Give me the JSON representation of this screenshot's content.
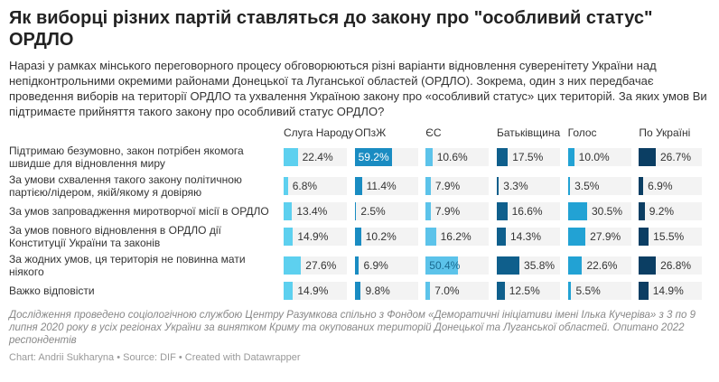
{
  "title": "Як виборці різних партій ставляться до закону про \"особливий статус\" ОРДЛО",
  "description": "Наразі у рамках мінського переговорного процесу обговорюються різні варіанти відновлення суверенітету України над непідконтрольними окремими районами Донецької та Луганської областей (ОРДЛО). Зокрема, один з них передбачає проведення виборів на території ОРДЛО та ухвалення Україною закону про «особливий статус» цих територій. За яких умов Ви підтримаєте прийняття такого закону про особливий статус ОРДЛО?",
  "notes": "Дослідження проведено соціологічною службою Центру Разумкова спільно з Фондом «Деморатичні ініціативи імені Ілька Кучеріва» з 3 по 9 липня 2020 року в усіх регіонах України за винятком Криму та окупованих територій Донецької та Луганської областей. Опитано 2022 респондентів",
  "source": "Chart: Andrii Sukharyna • Source: DIF • Created with Datawrapper",
  "chart_data": {
    "type": "table",
    "columns": [
      {
        "name": "Слуга Народу",
        "color": "#5dd0ef"
      },
      {
        "name": "ОПзЖ",
        "color": "#1a8cc2"
      },
      {
        "name": "ЄС",
        "color": "#5cc3ea"
      },
      {
        "name": "Батьківщина",
        "color": "#0f5f8c"
      },
      {
        "name": "Голос",
        "color": "#22a2d4"
      },
      {
        "name": "По Україні",
        "color": "#0b3e63"
      }
    ],
    "rows": [
      {
        "label": "Підтримаю безумовно, закон потрібен якомога швидше для відновлення миру",
        "values": [
          22.4,
          59.2,
          10.6,
          17.5,
          10.0,
          26.7
        ]
      },
      {
        "label": "За умови схвалення такого закону політичною партією/лідером, якій/якому я довіряю",
        "values": [
          6.8,
          11.4,
          7.9,
          3.3,
          3.5,
          6.9
        ]
      },
      {
        "label": "За умов запровадження миротворчої місії в ОРДЛО",
        "values": [
          13.4,
          2.5,
          7.9,
          16.6,
          30.5,
          9.2
        ]
      },
      {
        "label": "За умов повного відновлення в ОРДЛО дії Конституції України та законів",
        "values": [
          14.9,
          10.2,
          16.2,
          14.3,
          27.9,
          15.5
        ]
      },
      {
        "label": "За жодних умов, ця територія не повинна мати ніякого",
        "values": [
          27.6,
          6.9,
          50.4,
          35.8,
          22.6,
          26.8
        ]
      },
      {
        "label": "Важко відповісти",
        "values": [
          14.9,
          9.8,
          7.0,
          12.5,
          5.5,
          14.9
        ]
      }
    ]
  }
}
